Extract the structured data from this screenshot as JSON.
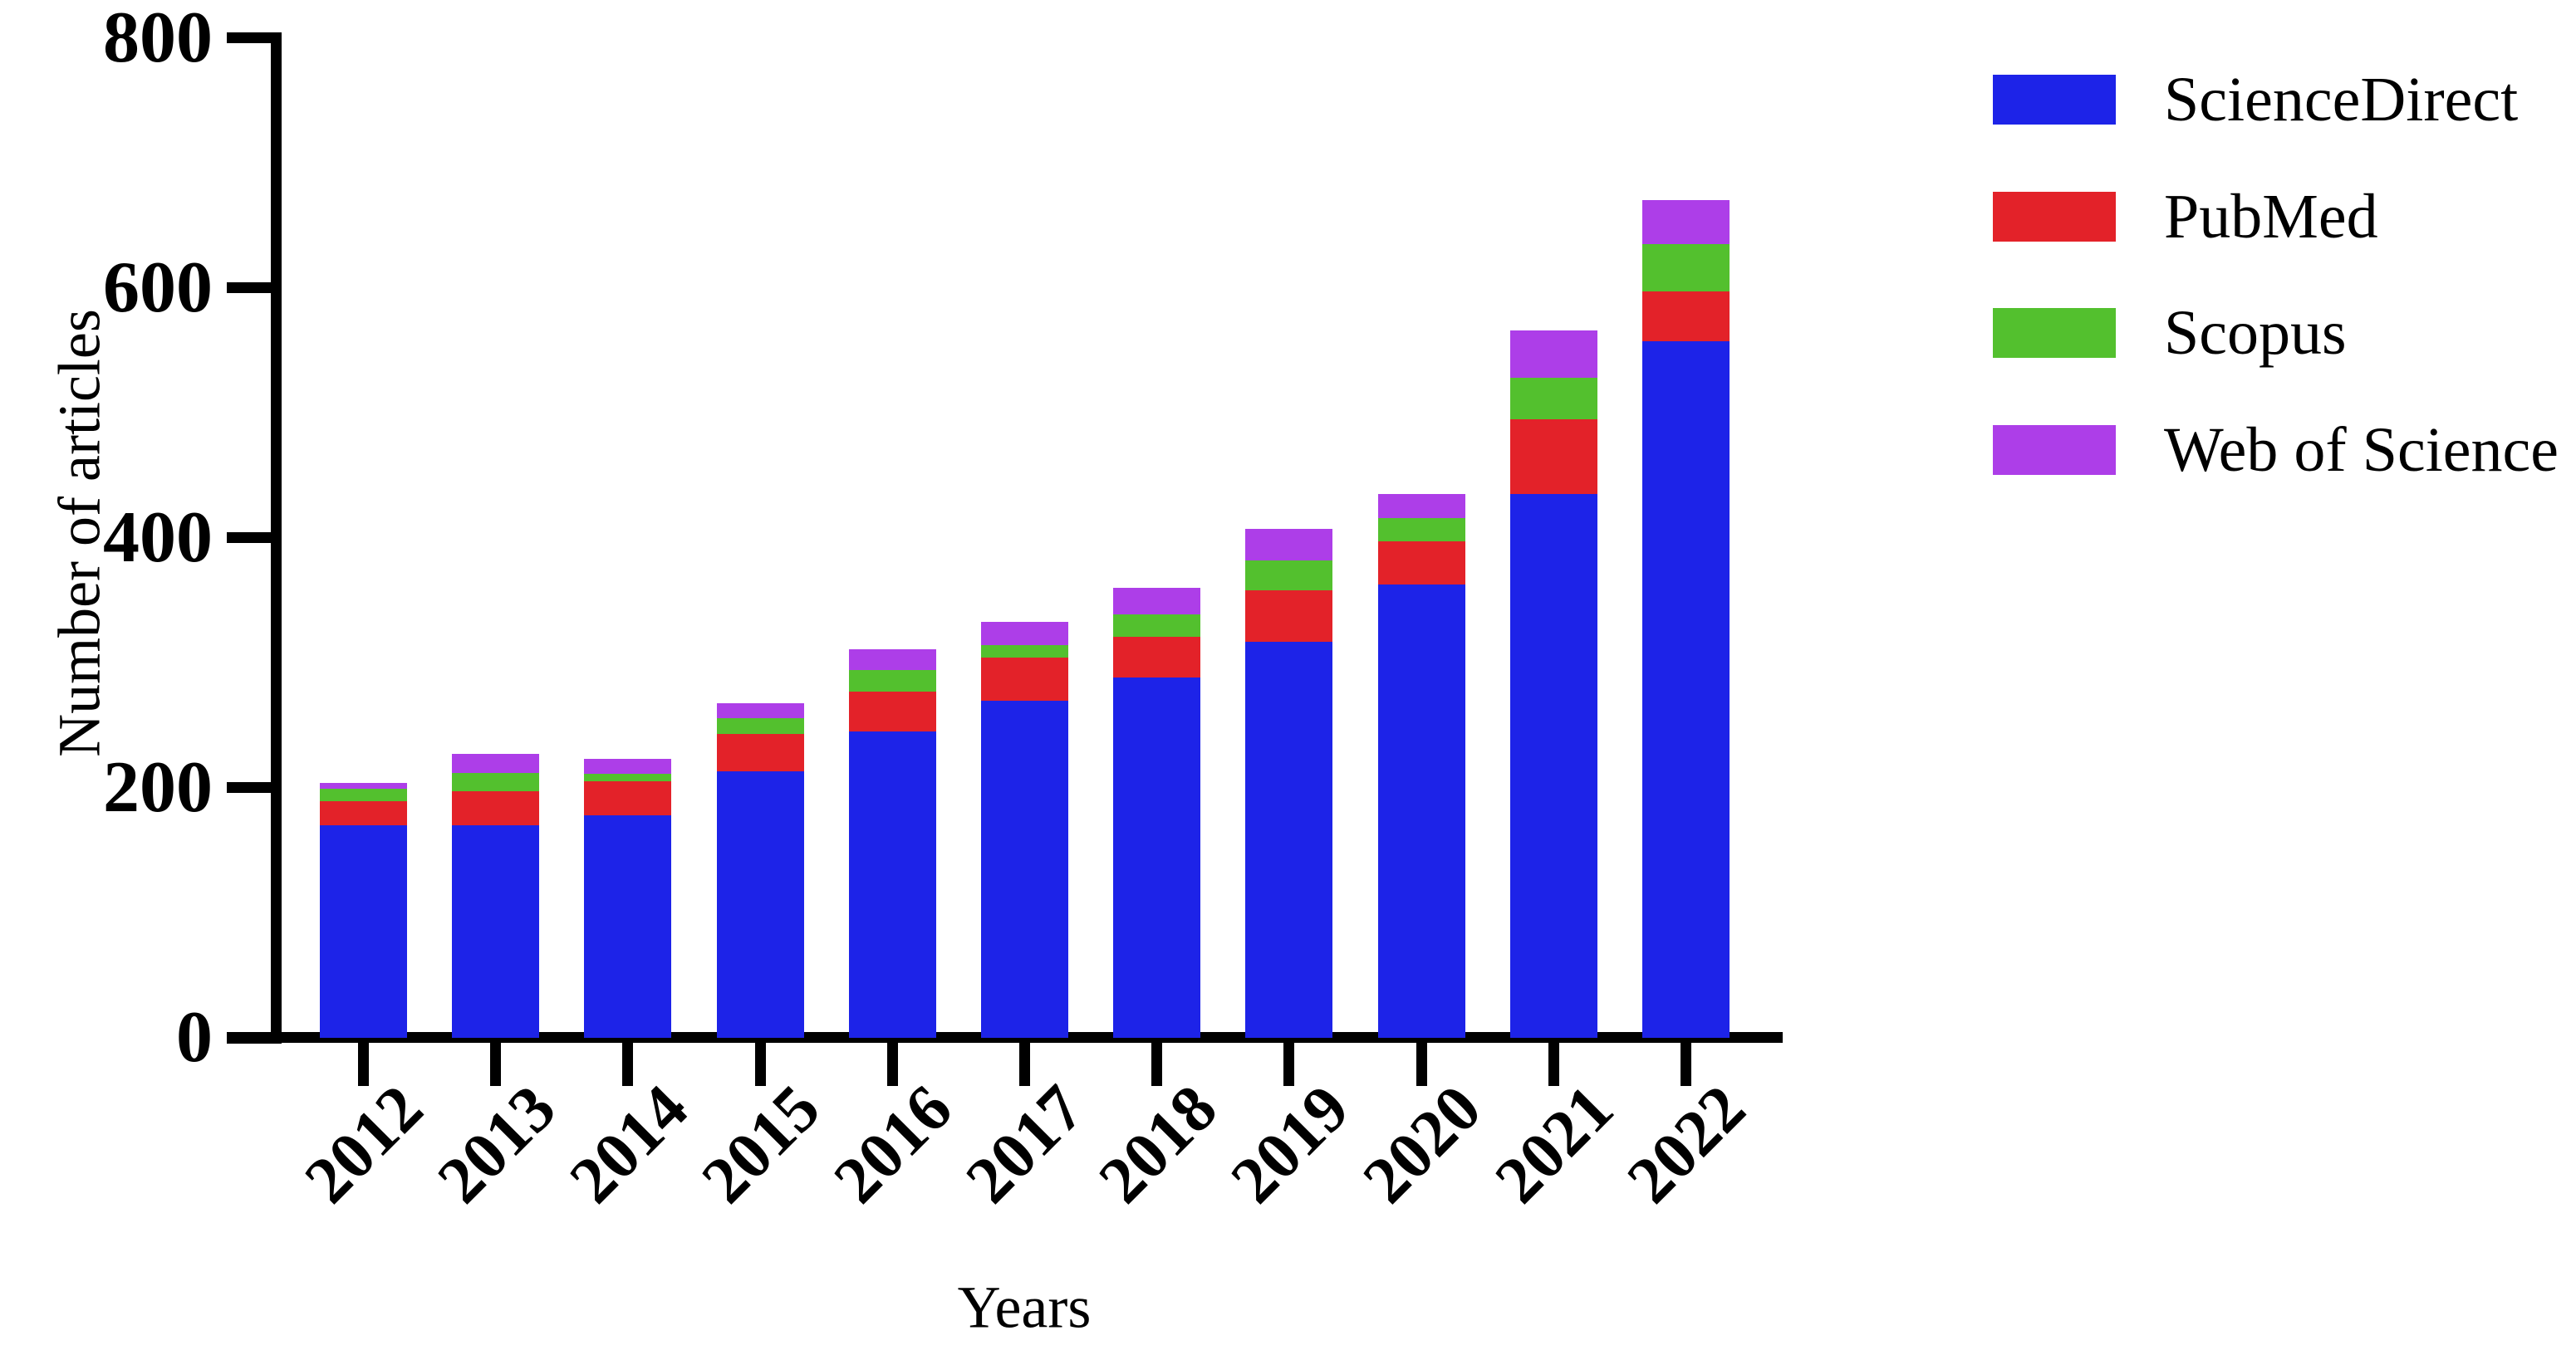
{
  "chart_data": {
    "type": "bar",
    "stacked": true,
    "title": "",
    "xlabel": "Years",
    "ylabel": "Number of articles",
    "categories": [
      "2012",
      "2013",
      "2014",
      "2015",
      "2016",
      "2017",
      "2018",
      "2019",
      "2020",
      "2021",
      "2022"
    ],
    "series": [
      {
        "name": "ScienceDirect",
        "color": "#1d23e8",
        "values": [
          170,
          170,
          178,
          213,
          245,
          270,
          288,
          317,
          363,
          435,
          557
        ]
      },
      {
        "name": "PubMed",
        "color": "#e32229",
        "values": [
          19,
          27,
          27,
          30,
          32,
          34,
          33,
          41,
          34,
          60,
          40
        ]
      },
      {
        "name": "Scopus",
        "color": "#53c02e",
        "values": [
          10,
          15,
          6,
          13,
          17,
          10,
          18,
          24,
          19,
          33,
          38
        ]
      },
      {
        "name": "Web of Science",
        "color": "#ad3ee8",
        "values": [
          5,
          15,
          12,
          12,
          17,
          19,
          21,
          25,
          19,
          38,
          35
        ]
      }
    ],
    "ylim": [
      0,
      800
    ],
    "yticks": [
      0,
      200,
      400,
      600,
      800
    ],
    "grid": false,
    "legend_position": "right",
    "axis_color": "#000000"
  }
}
